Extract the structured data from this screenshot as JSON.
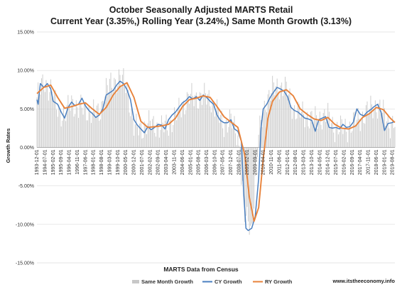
{
  "chart_data": {
    "type": "line",
    "title": "October Seasonally Adjusted MARTS Retail",
    "subtitle": "Current Year (3.35%,) Rolling Year (3.24%,) Same Month Growth (3.13%)",
    "ylabel": "Growth Rates",
    "xlabel": "MARTS Data from Census",
    "source": "www.itstheeconomy.info",
    "ylim": [
      -15,
      15
    ],
    "yticks": [
      "15.00%",
      "10.00%",
      "5.00%",
      "0.00%",
      "-5.00%",
      "-10.00%",
      "-15.00%"
    ],
    "ytick_values": [
      15,
      10,
      5,
      0,
      -5,
      -10,
      -15
    ],
    "xticks": [
      "1993-12-01",
      "1994-07-01",
      "1995-02-01",
      "1995-09-01",
      "1996-04-01",
      "1996-11-01",
      "1997-06-01",
      "1998-01-01",
      "1998-08-01",
      "1999-03-01",
      "1999-10-01",
      "2000-05-01",
      "2000-12-01",
      "2001-07-01",
      "2002-02-01",
      "2002-09-01",
      "2003-04-01",
      "2003-11-01",
      "2004-06-01",
      "2005-01-01",
      "2005-08-01",
      "2006-03-01",
      "2006-10-01",
      "2007-05-01",
      "2007-12-01",
      "2008-07-01",
      "2009-02-01",
      "2009-09-01",
      "2010-04-01",
      "2010-11-01",
      "2011-06-01",
      "2012-01-01",
      "2012-08-01",
      "2013-03-01",
      "2013-10-01",
      "2014-05-01",
      "2014-12-01",
      "2015-07-01",
      "2016-02-01",
      "2016-09-01",
      "2017-04-01",
      "2017-11-01",
      "2018-06-01",
      "2019-01-01",
      "2019-08-01"
    ],
    "x_start": "1993-12-01",
    "x_end": "2019-10-01",
    "grid": true,
    "legend_position": "bottom",
    "series": [
      {
        "name": "Same Month Growth",
        "kind": "bar",
        "color": "#c8c8c8",
        "points": [
          [
            "1993-12-01",
            6.5
          ],
          [
            "1994-06-01",
            8.5
          ],
          [
            "1994-12-01",
            7.5
          ],
          [
            "1995-06-01",
            5.0
          ],
          [
            "1995-12-01",
            4.0
          ],
          [
            "1996-06-01",
            6.0
          ],
          [
            "1996-12-01",
            5.0
          ],
          [
            "1997-06-01",
            5.0
          ],
          [
            "1997-12-01",
            4.5
          ],
          [
            "1998-06-01",
            4.5
          ],
          [
            "1998-12-01",
            7.5
          ],
          [
            "1999-06-01",
            8.5
          ],
          [
            "1999-12-01",
            9.0
          ],
          [
            "2000-06-01",
            8.0
          ],
          [
            "2000-12-01",
            2.5
          ],
          [
            "2001-06-01",
            2.5
          ],
          [
            "2001-12-01",
            3.0
          ],
          [
            "2002-06-01",
            3.0
          ],
          [
            "2002-12-01",
            2.5
          ],
          [
            "2003-06-01",
            3.0
          ],
          [
            "2003-12-01",
            4.0
          ],
          [
            "2004-06-01",
            5.5
          ],
          [
            "2004-12-01",
            6.5
          ],
          [
            "2005-06-01",
            6.5
          ],
          [
            "2005-12-01",
            6.5
          ],
          [
            "2006-06-01",
            6.5
          ],
          [
            "2006-12-01",
            4.5
          ],
          [
            "2007-06-01",
            3.0
          ],
          [
            "2007-12-01",
            3.5
          ],
          [
            "2008-06-01",
            1.5
          ],
          [
            "2008-12-01",
            -9.0
          ],
          [
            "2009-06-01",
            -10.5
          ],
          [
            "2009-12-01",
            1.5
          ],
          [
            "2010-06-01",
            6.0
          ],
          [
            "2010-12-01",
            7.5
          ],
          [
            "2011-06-01",
            8.0
          ],
          [
            "2011-12-01",
            7.5
          ],
          [
            "2012-06-01",
            5.0
          ],
          [
            "2012-12-01",
            4.5
          ],
          [
            "2013-06-01",
            4.0
          ],
          [
            "2013-12-01",
            3.5
          ],
          [
            "2014-06-01",
            4.0
          ],
          [
            "2014-12-01",
            4.0
          ],
          [
            "2015-06-01",
            2.5
          ],
          [
            "2015-12-01",
            2.5
          ],
          [
            "2016-06-01",
            2.5
          ],
          [
            "2016-12-01",
            3.5
          ],
          [
            "2017-06-01",
            4.0
          ],
          [
            "2017-12-01",
            5.0
          ],
          [
            "2018-06-01",
            5.5
          ],
          [
            "2018-12-01",
            4.5
          ],
          [
            "2019-06-01",
            3.0
          ],
          [
            "2019-10-01",
            3.1
          ]
        ]
      },
      {
        "name": "CY Growth",
        "kind": "line",
        "color": "#4a7fc0",
        "points": [
          [
            "1993-12-01",
            6.2
          ],
          [
            "1994-01-01",
            5.6
          ],
          [
            "1994-03-01",
            8.3
          ],
          [
            "1994-06-01",
            7.8
          ],
          [
            "1994-09-01",
            8.3
          ],
          [
            "1994-12-01",
            7.6
          ],
          [
            "1995-02-01",
            6.0
          ],
          [
            "1995-06-01",
            5.6
          ],
          [
            "1995-09-01",
            4.6
          ],
          [
            "1995-12-01",
            3.8
          ],
          [
            "1996-03-01",
            5.2
          ],
          [
            "1996-06-01",
            5.9
          ],
          [
            "1996-09-01",
            5.4
          ],
          [
            "1996-12-01",
            5.6
          ],
          [
            "1997-03-01",
            6.4
          ],
          [
            "1997-06-01",
            5.4
          ],
          [
            "1997-09-01",
            4.8
          ],
          [
            "1997-12-01",
            4.4
          ],
          [
            "1998-03-01",
            3.9
          ],
          [
            "1998-06-01",
            4.2
          ],
          [
            "1998-09-01",
            5.0
          ],
          [
            "1998-12-01",
            6.8
          ],
          [
            "1999-03-01",
            7.1
          ],
          [
            "1999-06-01",
            7.4
          ],
          [
            "1999-09-01",
            8.1
          ],
          [
            "1999-12-01",
            8.6
          ],
          [
            "2000-03-01",
            8.3
          ],
          [
            "2000-06-01",
            7.5
          ],
          [
            "2000-09-01",
            6.2
          ],
          [
            "2000-12-01",
            3.6
          ],
          [
            "2001-03-01",
            2.9
          ],
          [
            "2001-06-01",
            2.4
          ],
          [
            "2001-09-01",
            1.9
          ],
          [
            "2001-12-01",
            2.7
          ],
          [
            "2002-03-01",
            2.3
          ],
          [
            "2002-06-01",
            2.6
          ],
          [
            "2002-09-01",
            3.0
          ],
          [
            "2002-12-01",
            2.9
          ],
          [
            "2003-03-01",
            2.4
          ],
          [
            "2003-06-01",
            3.6
          ],
          [
            "2003-09-01",
            4.2
          ],
          [
            "2003-12-01",
            4.6
          ],
          [
            "2004-03-01",
            5.2
          ],
          [
            "2004-06-01",
            5.8
          ],
          [
            "2004-09-01",
            6.1
          ],
          [
            "2004-12-01",
            6.6
          ],
          [
            "2005-03-01",
            6.3
          ],
          [
            "2005-06-01",
            6.6
          ],
          [
            "2005-09-01",
            6.1
          ],
          [
            "2005-12-01",
            6.8
          ],
          [
            "2006-03-01",
            6.5
          ],
          [
            "2006-06-01",
            6.0
          ],
          [
            "2006-09-01",
            5.6
          ],
          [
            "2006-12-01",
            4.2
          ],
          [
            "2007-03-01",
            3.5
          ],
          [
            "2007-06-01",
            3.2
          ],
          [
            "2007-09-01",
            3.2
          ],
          [
            "2007-12-01",
            3.6
          ],
          [
            "2008-03-01",
            2.4
          ],
          [
            "2008-06-01",
            2.1
          ],
          [
            "2008-09-01",
            0.8
          ],
          [
            "2008-11-01",
            -6.0
          ],
          [
            "2009-01-01",
            -10.5
          ],
          [
            "2009-03-01",
            -10.8
          ],
          [
            "2009-06-01",
            -10.5
          ],
          [
            "2009-09-01",
            -9.0
          ],
          [
            "2009-12-01",
            -4.0
          ],
          [
            "2010-02-01",
            2.5
          ],
          [
            "2010-04-01",
            5.0
          ],
          [
            "2010-07-01",
            5.6
          ],
          [
            "2010-10-01",
            6.5
          ],
          [
            "2011-01-01",
            7.2
          ],
          [
            "2011-04-01",
            7.8
          ],
          [
            "2011-07-01",
            7.6
          ],
          [
            "2011-10-01",
            7.3
          ],
          [
            "2012-01-01",
            6.6
          ],
          [
            "2012-04-01",
            5.2
          ],
          [
            "2012-07-01",
            4.8
          ],
          [
            "2012-10-01",
            4.6
          ],
          [
            "2013-01-01",
            4.2
          ],
          [
            "2013-04-01",
            3.8
          ],
          [
            "2013-07-01",
            3.7
          ],
          [
            "2013-10-01",
            3.5
          ],
          [
            "2014-01-01",
            2.1
          ],
          [
            "2014-04-01",
            3.6
          ],
          [
            "2014-07-01",
            3.8
          ],
          [
            "2014-10-01",
            4.0
          ],
          [
            "2015-01-01",
            2.6
          ],
          [
            "2015-04-01",
            2.5
          ],
          [
            "2015-07-01",
            2.6
          ],
          [
            "2015-10-01",
            2.4
          ],
          [
            "2016-01-01",
            3.0
          ],
          [
            "2016-04-01",
            2.6
          ],
          [
            "2016-07-01",
            2.7
          ],
          [
            "2016-10-01",
            3.3
          ],
          [
            "2017-01-01",
            5.0
          ],
          [
            "2017-04-01",
            4.3
          ],
          [
            "2017-07-01",
            4.1
          ],
          [
            "2017-10-01",
            4.6
          ],
          [
            "2018-01-01",
            4.9
          ],
          [
            "2018-04-01",
            5.3
          ],
          [
            "2018-07-01",
            5.6
          ],
          [
            "2018-10-01",
            4.6
          ],
          [
            "2019-01-01",
            2.2
          ],
          [
            "2019-04-01",
            3.1
          ],
          [
            "2019-07-01",
            3.2
          ],
          [
            "2019-10-01",
            3.35
          ]
        ]
      },
      {
        "name": "RY Growth",
        "kind": "line",
        "color": "#e8823a",
        "points": [
          [
            "1993-12-01",
            7.0
          ],
          [
            "1994-06-01",
            7.8
          ],
          [
            "1994-12-01",
            8.1
          ],
          [
            "1995-06-01",
            6.5
          ],
          [
            "1995-12-01",
            5.1
          ],
          [
            "1996-06-01",
            5.3
          ],
          [
            "1996-12-01",
            5.6
          ],
          [
            "1997-06-01",
            5.8
          ],
          [
            "1997-12-01",
            5.0
          ],
          [
            "1998-06-01",
            4.3
          ],
          [
            "1998-12-01",
            5.2
          ],
          [
            "1999-06-01",
            6.8
          ],
          [
            "1999-12-01",
            7.9
          ],
          [
            "2000-06-01",
            8.4
          ],
          [
            "2000-12-01",
            6.5
          ],
          [
            "2001-06-01",
            3.4
          ],
          [
            "2001-12-01",
            2.6
          ],
          [
            "2002-06-01",
            2.7
          ],
          [
            "2002-12-01",
            2.8
          ],
          [
            "2003-06-01",
            3.0
          ],
          [
            "2003-12-01",
            3.8
          ],
          [
            "2004-06-01",
            5.3
          ],
          [
            "2004-12-01",
            6.2
          ],
          [
            "2005-06-01",
            6.4
          ],
          [
            "2005-12-01",
            6.7
          ],
          [
            "2006-06-01",
            6.5
          ],
          [
            "2006-12-01",
            5.3
          ],
          [
            "2007-06-01",
            4.0
          ],
          [
            "2007-12-01",
            3.3
          ],
          [
            "2008-06-01",
            2.6
          ],
          [
            "2008-12-01",
            -1.0
          ],
          [
            "2009-04-01",
            -6.5
          ],
          [
            "2009-08-01",
            -9.6
          ],
          [
            "2009-12-01",
            -7.8
          ],
          [
            "2010-04-01",
            -1.5
          ],
          [
            "2010-08-01",
            3.8
          ],
          [
            "2010-12-01",
            6.0
          ],
          [
            "2011-06-01",
            7.2
          ],
          [
            "2011-12-01",
            7.5
          ],
          [
            "2012-06-01",
            6.7
          ],
          [
            "2012-12-01",
            5.0
          ],
          [
            "2013-06-01",
            4.3
          ],
          [
            "2013-12-01",
            3.7
          ],
          [
            "2014-06-01",
            3.5
          ],
          [
            "2014-12-01",
            3.9
          ],
          [
            "2015-06-01",
            3.0
          ],
          [
            "2015-12-01",
            2.5
          ],
          [
            "2016-06-01",
            2.4
          ],
          [
            "2016-12-01",
            2.8
          ],
          [
            "2017-06-01",
            3.9
          ],
          [
            "2017-12-01",
            4.4
          ],
          [
            "2018-06-01",
            5.2
          ],
          [
            "2018-12-01",
            4.9
          ],
          [
            "2019-06-01",
            3.8
          ],
          [
            "2019-10-01",
            3.24
          ]
        ]
      }
    ]
  }
}
